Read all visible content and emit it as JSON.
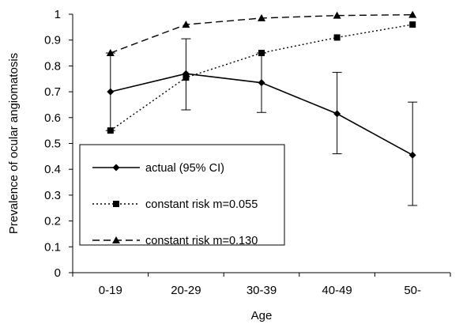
{
  "chart_data": {
    "type": "line",
    "categories": [
      "0-19",
      "20-29",
      "30-39",
      "40-49",
      "50-"
    ],
    "xlabel": "Age",
    "ylabel": "Prevalence of ocular angiomatosis",
    "ylim": [
      0,
      1
    ],
    "yticks": [
      "0",
      "0.1",
      "0.2",
      "0.3",
      "0.4",
      "0.5",
      "0.6",
      "0.7",
      "0.8",
      "0.9",
      "1"
    ],
    "grid": false,
    "legend": "bottom-left",
    "series": [
      {
        "name": "actual (95% CI)",
        "marker": "diamond",
        "line": "solid",
        "values": [
          0.7,
          0.77,
          0.735,
          0.615,
          0.455
        ],
        "ci_low": [
          0.55,
          0.63,
          0.62,
          0.46,
          0.26
        ],
        "ci_high": [
          0.85,
          0.905,
          0.85,
          0.775,
          0.66
        ]
      },
      {
        "name": "constant risk m=0.055",
        "marker": "square",
        "line": "dotted",
        "values": [
          0.55,
          0.755,
          0.85,
          0.91,
          0.96
        ]
      },
      {
        "name": "constant risk m=0.130",
        "marker": "triangle",
        "line": "dashed",
        "values": [
          0.85,
          0.96,
          0.985,
          0.995,
          0.998
        ]
      }
    ]
  }
}
